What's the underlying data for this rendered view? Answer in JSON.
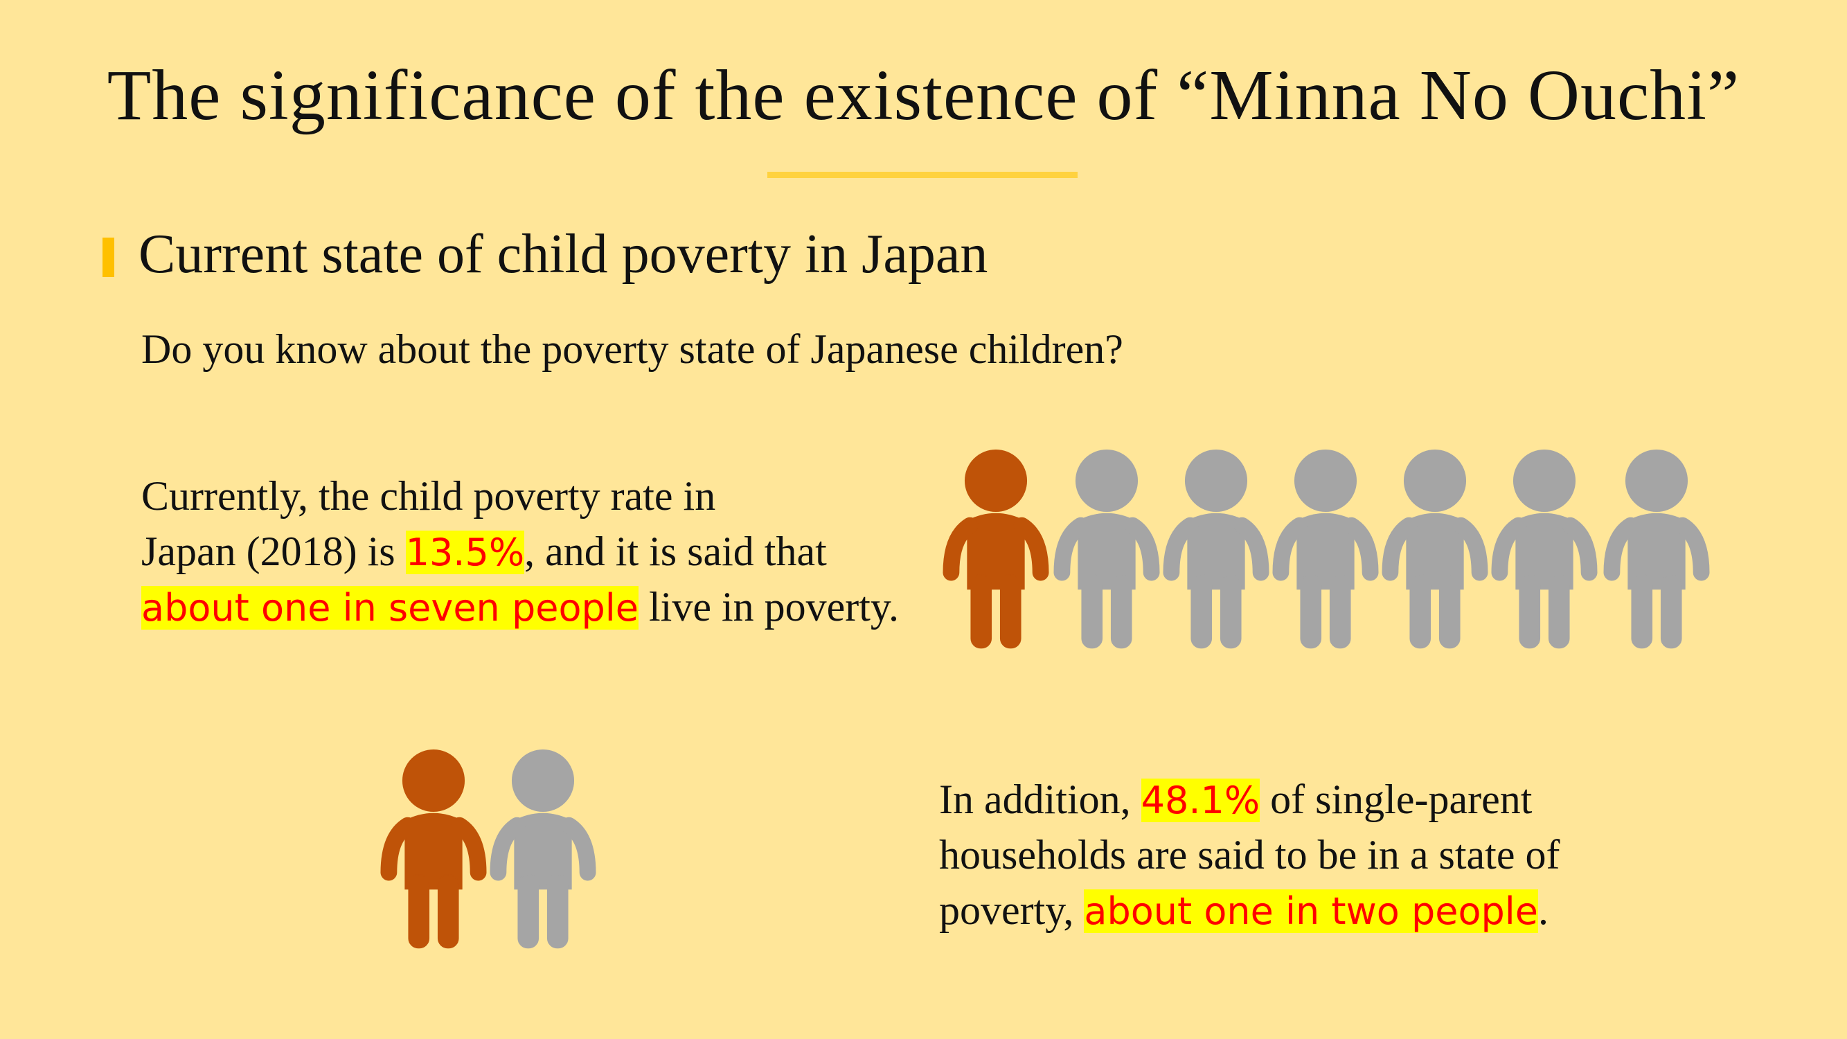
{
  "title": "The significance of the existence of “Minna No Ouchi”",
  "section": {
    "heading": "Current state of child poverty in Japan",
    "question": "Do you know about the poverty state of Japanese children?",
    "paragraph1": {
      "lines": [
        [
          "Currently, the child poverty rate in"
        ],
        [
          "Japan (2018) is ",
          "13.5%",
          ", and it is said that"
        ],
        [
          "about one in seven people",
          " live in poverty."
        ]
      ]
    },
    "paragraph2": {
      "lines": [
        [
          "In addition, ",
          "48.1%",
          " of single-parent"
        ],
        [
          "households are said to be in a state of"
        ],
        [
          "poverty, ",
          "about one in two people",
          "."
        ]
      ]
    }
  }
}
